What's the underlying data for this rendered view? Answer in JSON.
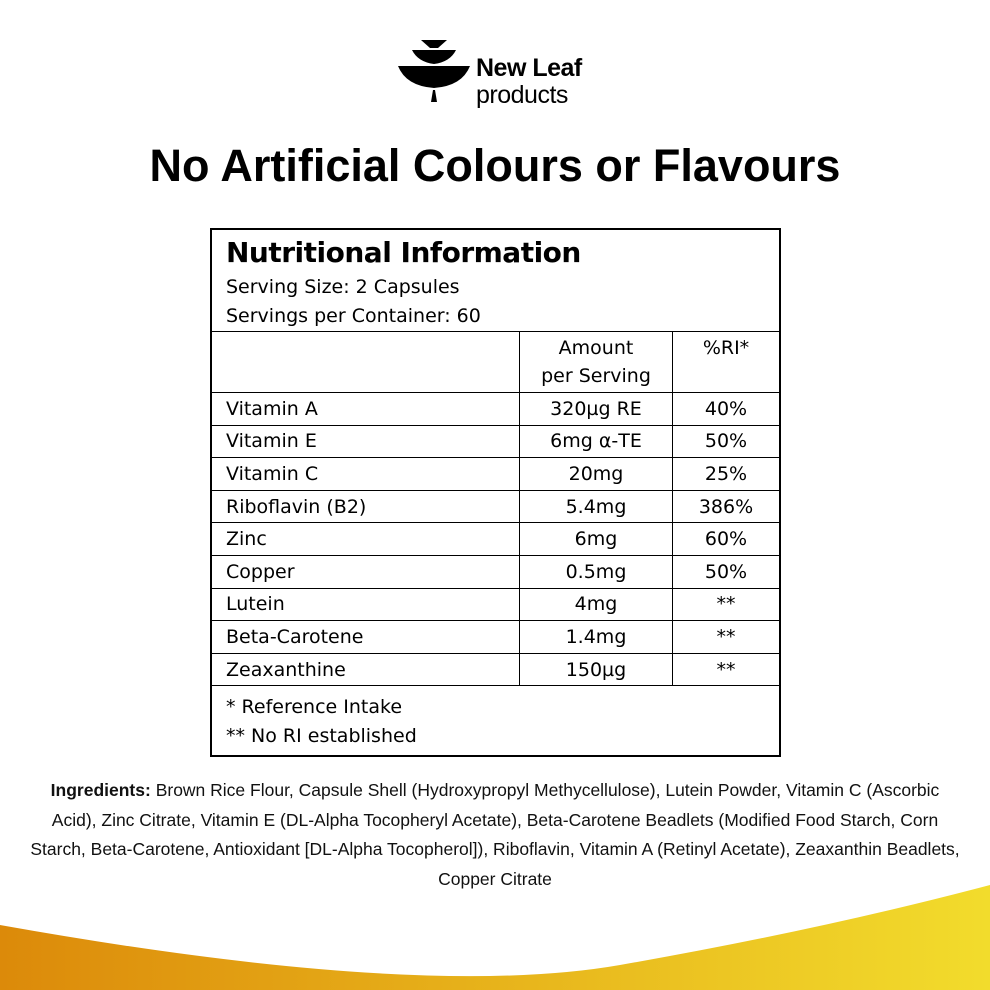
{
  "brand": {
    "name_line1": "New Leaf",
    "name_line2": "products"
  },
  "headline": "No Artificial Colours or Flavours",
  "nutrition": {
    "title": "Nutritional Information",
    "serving_size": "Serving Size: 2 Capsules",
    "servings_per_container": "Servings per Container: 60",
    "columns": [
      "",
      "Amount per Serving",
      "%RI*"
    ],
    "rows": [
      {
        "name": "Vitamin A",
        "amount": "320µg RE",
        "ri": "40%"
      },
      {
        "name": "Vitamin E",
        "amount": "6mg α-TE",
        "ri": "50%"
      },
      {
        "name": "Vitamin C",
        "amount": "20mg",
        "ri": "25%"
      },
      {
        "name": "Riboflavin (B2)",
        "amount": "5.4mg",
        "ri": "386%"
      },
      {
        "name": "Zinc",
        "amount": "6mg",
        "ri": "60%"
      },
      {
        "name": "Copper",
        "amount": "0.5mg",
        "ri": "50%"
      },
      {
        "name": "Lutein",
        "amount": "4mg",
        "ri": "**"
      },
      {
        "name": "Beta-Carotene",
        "amount": "1.4mg",
        "ri": "**"
      },
      {
        "name": "Zeaxanthine",
        "amount": "150µg",
        "ri": "**"
      }
    ],
    "footnote1": "* Reference Intake",
    "footnote2": "** No RI established"
  },
  "ingredients": {
    "label": "Ingredients:",
    "text": " Brown Rice Flour, Capsule Shell (Hydroxypropyl Methycellulose), Lutein Powder, Vitamin C (Ascorbic Acid), Zinc Citrate, Vitamin E (DL-Alpha Tocopheryl Acetate), Beta-Carotene Beadlets (Modified Food Starch, Corn Starch, Beta-Carotene, Antioxidant [DL-Alpha Tocopherol]), Riboflavin, Vitamin A (Retinyl Acetate), Zeaxanthin Beadlets, Copper Citrate"
  },
  "colors": {
    "wave_start": "#dc8a0a",
    "wave_end": "#f2dc2c"
  }
}
